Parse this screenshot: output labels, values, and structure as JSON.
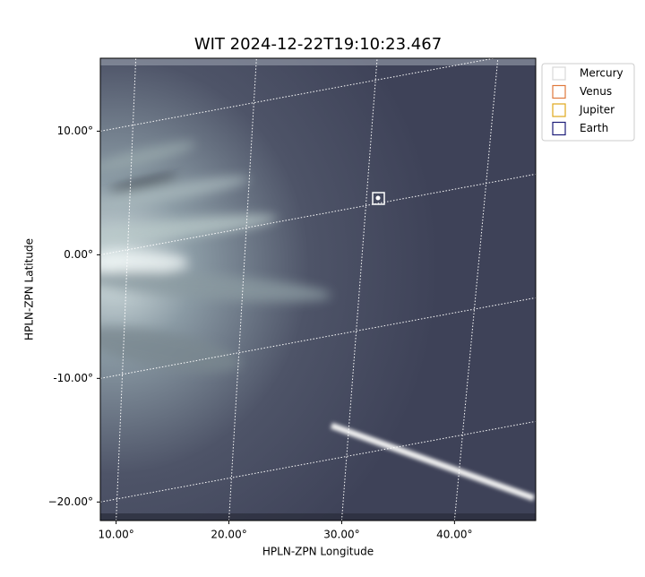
{
  "chart_data": {
    "type": "image",
    "title": "WIT 2024-12-22T19:10:23.467",
    "x_label": "HPLN-ZPN Longitude",
    "y_label": "HPLN-ZPN Latitude",
    "xlim": [
      8.6,
      47.2
    ],
    "ylim": [
      -21.5,
      15.9
    ],
    "xticks": [
      {
        "value": 10,
        "label": "10.00°"
      },
      {
        "value": 20,
        "label": "20.00°"
      },
      {
        "value": 30,
        "label": "30.00°"
      },
      {
        "value": 40,
        "label": "40.00°"
      }
    ],
    "yticks": [
      {
        "value": 10,
        "label": "10.00°"
      },
      {
        "value": 0,
        "label": "0.00°"
      },
      {
        "value": -10,
        "label": "-10.00°"
      },
      {
        "value": -20,
        "label": "−20.00°"
      }
    ],
    "grid": true,
    "legend": {
      "position": "upper right outside",
      "entries": [
        {
          "name": "Mercury",
          "color": "#d8d8d8"
        },
        {
          "name": "Venus",
          "color": "#e0783c"
        },
        {
          "name": "Jupiter",
          "color": "#e0a81c"
        },
        {
          "name": "Earth",
          "color": "#1c1c78"
        }
      ]
    }
  }
}
